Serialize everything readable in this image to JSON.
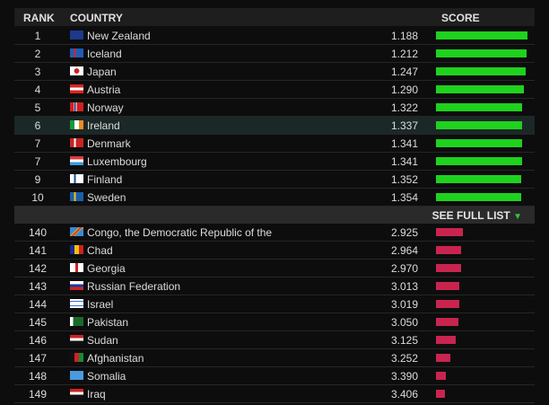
{
  "header": {
    "rank": "RANK",
    "country": "COUNTRY",
    "score": "SCORE"
  },
  "top": [
    {
      "rank": 1,
      "country": "New Zealand",
      "score": {
        "value": 1.188,
        "label": "1.188"
      }
    },
    {
      "rank": 2,
      "country": "Iceland",
      "score": {
        "value": 1.212,
        "label": "1.212"
      }
    },
    {
      "rank": 3,
      "country": "Japan",
      "score": {
        "value": 1.247,
        "label": "1.247"
      }
    },
    {
      "rank": 4,
      "country": "Austria",
      "score": {
        "value": 1.29,
        "label": "1.290"
      }
    },
    {
      "rank": 5,
      "country": "Norway",
      "score": {
        "value": 1.322,
        "label": "1.322"
      }
    },
    {
      "rank": 6,
      "country": "Ireland",
      "score": {
        "value": 1.337,
        "label": "1.337"
      }
    },
    {
      "rank": 7,
      "country": "Denmark",
      "score": {
        "value": 1.341,
        "label": "1.341"
      }
    },
    {
      "rank": 7,
      "country": "Luxembourg",
      "score": {
        "value": 1.341,
        "label": "1.341"
      }
    },
    {
      "rank": 9,
      "country": "Finland",
      "score": {
        "value": 1.352,
        "label": "1.352"
      }
    },
    {
      "rank": 10,
      "country": "Sweden",
      "score": {
        "value": 1.354,
        "label": "1.354"
      }
    }
  ],
  "see_full_list": "SEE FULL LIST",
  "bottom": [
    {
      "rank": 140,
      "country": "Congo, the Democratic Republic of the",
      "score": {
        "value": 2.925,
        "label": "2.925"
      }
    },
    {
      "rank": 141,
      "country": "Chad",
      "score": {
        "value": 2.964,
        "label": "2.964"
      }
    },
    {
      "rank": 142,
      "country": "Georgia",
      "score": {
        "value": 2.97,
        "label": "2.970"
      }
    },
    {
      "rank": 143,
      "country": "Russian Federation",
      "score": {
        "value": 3.013,
        "label": "3.013"
      }
    },
    {
      "rank": 144,
      "country": "Israel",
      "score": {
        "value": 3.019,
        "label": "3.019"
      }
    },
    {
      "rank": 145,
      "country": "Pakistan",
      "score": {
        "value": 3.05,
        "label": "3.050"
      }
    },
    {
      "rank": 146,
      "country": "Sudan",
      "score": {
        "value": 3.125,
        "label": "3.125"
      }
    },
    {
      "rank": 147,
      "country": "Afghanistan",
      "score": {
        "value": 3.252,
        "label": "3.252"
      }
    },
    {
      "rank": 148,
      "country": "Somalia",
      "score": {
        "value": 3.39,
        "label": "3.390"
      }
    },
    {
      "rank": 149,
      "country": "Iraq",
      "score": {
        "value": 3.406,
        "label": "3.406"
      }
    }
  ]
}
